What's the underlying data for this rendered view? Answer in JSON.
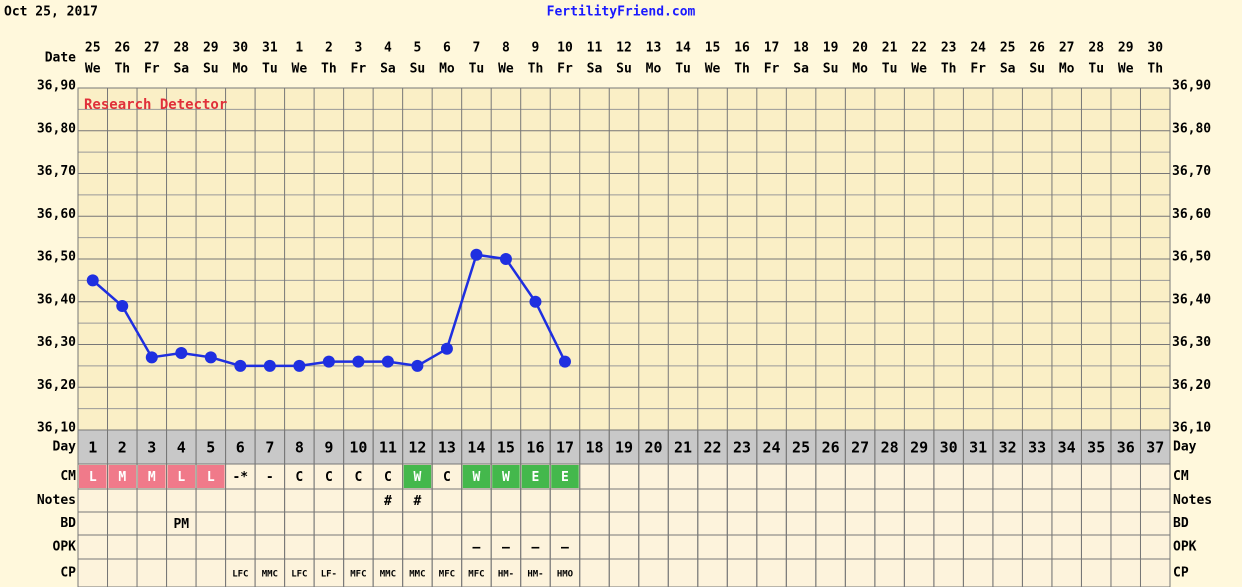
{
  "chart_data": {
    "type": "line",
    "date": "Oct 25, 2017",
    "site": "FertilityFriend.com",
    "annotation": "Research Detector",
    "row_labels": {
      "date": "Date",
      "day": "Day",
      "cm": "CM",
      "notes": "Notes",
      "bd": "BD",
      "opk": "OPK",
      "cp": "CP"
    },
    "categories": [
      1,
      2,
      3,
      4,
      5,
      6,
      7,
      8,
      9,
      10,
      11,
      12,
      13,
      14,
      15,
      16,
      17,
      18,
      19,
      20,
      21,
      22,
      23,
      24,
      25,
      26,
      27,
      28,
      29,
      30,
      31,
      32,
      33,
      34,
      35,
      36,
      37
    ],
    "dates": [
      25,
      26,
      27,
      28,
      29,
      30,
      31,
      1,
      2,
      3,
      4,
      5,
      6,
      7,
      8,
      9,
      10,
      11,
      12,
      13,
      14,
      15,
      16,
      17,
      18,
      19,
      20,
      21,
      22,
      23,
      24,
      25,
      26,
      27,
      28,
      29,
      30
    ],
    "weekdays": [
      "We",
      "Th",
      "Fr",
      "Sa",
      "Su",
      "Mo",
      "Tu",
      "We",
      "Th",
      "Fr",
      "Sa",
      "Su",
      "Mo",
      "Tu",
      "We",
      "Th",
      "Fr",
      "Sa",
      "Su",
      "Mo",
      "Tu",
      "We",
      "Th",
      "Fr",
      "Sa",
      "Su",
      "Mo",
      "Tu",
      "We",
      "Th",
      "Fr",
      "Sa",
      "Su",
      "Mo",
      "Tu",
      "We",
      "Th"
    ],
    "series": [
      {
        "name": "Temperature",
        "color": "#1f2fe0",
        "values": [
          36.45,
          36.39,
          36.27,
          36.28,
          36.27,
          36.25,
          36.25,
          36.25,
          36.26,
          36.26,
          36.26,
          36.25,
          36.29,
          36.51,
          36.5,
          36.4,
          36.26,
          null,
          null,
          null,
          null,
          null,
          null,
          null,
          null,
          null,
          null,
          null,
          null,
          null,
          null,
          null,
          null,
          null,
          null,
          null,
          null
        ]
      }
    ],
    "ylim": [
      36.1,
      36.9
    ],
    "yticks": [
      {
        "value": 36.1,
        "label": "36,10"
      },
      {
        "value": 36.2,
        "label": "36,20"
      },
      {
        "value": 36.3,
        "label": "36,30"
      },
      {
        "value": 36.4,
        "label": "36,40"
      },
      {
        "value": 36.5,
        "label": "36,50"
      },
      {
        "value": 36.6,
        "label": "36,60"
      },
      {
        "value": 36.7,
        "label": "36,70"
      },
      {
        "value": 36.8,
        "label": "36,80"
      },
      {
        "value": 36.9,
        "label": "36,90"
      }
    ],
    "grid": true,
    "cm": [
      "L",
      "M",
      "M",
      "L",
      "L",
      "-*",
      "-",
      "C",
      "C",
      "C",
      "C",
      "W",
      "C",
      "W",
      "W",
      "E",
      "E",
      null,
      null,
      null,
      null,
      null,
      null,
      null,
      null,
      null,
      null,
      null,
      null,
      null,
      null,
      null,
      null,
      null,
      null,
      null,
      null
    ],
    "cm_colors": {
      "L": "#f07a8a",
      "M": "#f07a8a",
      "W": "#44b84c",
      "E": "#44b84c"
    },
    "notes": [
      null,
      null,
      null,
      null,
      null,
      null,
      null,
      null,
      null,
      null,
      "#",
      "#",
      null,
      null,
      null,
      null,
      null,
      null,
      null,
      null,
      null,
      null,
      null,
      null,
      null,
      null,
      null,
      null,
      null,
      null,
      null,
      null,
      null,
      null,
      null,
      null,
      null
    ],
    "bd": [
      null,
      null,
      null,
      "PM",
      null,
      null,
      null,
      null,
      null,
      null,
      null,
      null,
      null,
      null,
      null,
      null,
      null,
      null,
      null,
      null,
      null,
      null,
      null,
      null,
      null,
      null,
      null,
      null,
      null,
      null,
      null,
      null,
      null,
      null,
      null,
      null,
      null
    ],
    "opk": [
      null,
      null,
      null,
      null,
      null,
      null,
      null,
      null,
      null,
      null,
      null,
      null,
      null,
      "–",
      "–",
      "–",
      "–",
      null,
      null,
      null,
      null,
      null,
      null,
      null,
      null,
      null,
      null,
      null,
      null,
      null,
      null,
      null,
      null,
      null,
      null,
      null,
      null
    ],
    "cp": [
      null,
      null,
      null,
      null,
      null,
      "LFC",
      "MMC",
      "LFC",
      "LF-",
      "MFC",
      "MMC",
      "MMC",
      "MFC",
      "MFC",
      "HM-",
      "HM-",
      "HMO",
      null,
      null,
      null,
      null,
      null,
      null,
      null,
      null,
      null,
      null,
      null,
      null,
      null,
      null,
      null,
      null,
      null,
      null,
      null,
      null
    ]
  }
}
